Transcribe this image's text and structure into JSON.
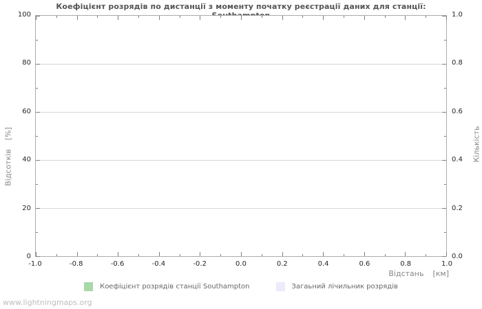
{
  "page": {
    "watermark": "www.lightningmaps.org"
  },
  "colors": {
    "background": "#ffffff",
    "title_text": "#545454",
    "tick_label_text": "#262626",
    "axis_label_text": "#878787",
    "plot_border": "#ababab",
    "gridline": "#d6d6d6",
    "tick_mark": "#7e7e7e",
    "legend_text": "#666666",
    "watermark_text": "#bdbdbd"
  },
  "chart_data": {
    "type": "line",
    "title": "Коефіцієнт розрядів по дистанції з моменту початку реєстрації даних для станції: Southampton",
    "plot_empty": true,
    "grid": {
      "horizontal_major": true,
      "vertical": false
    },
    "legend_position": "bottom-center",
    "x_axis": {
      "label": "Відстань",
      "unit": "[км]",
      "lim": [
        -1.0,
        1.0
      ],
      "ticks": [
        "-1.0",
        "-0.8",
        "-0.6",
        "-0.4",
        "-0.2",
        "0.0",
        "0.2",
        "0.4",
        "0.6",
        "0.8",
        "1.0"
      ],
      "minor_ticks_per_interval": 1
    },
    "y_axis_left": {
      "label": "Відсотків",
      "unit": "[%]",
      "lim": [
        0,
        100
      ],
      "ticks": [
        "100",
        "80",
        "60",
        "40",
        "20",
        "0"
      ],
      "minor_ticks_per_interval": 1
    },
    "y_axis_right": {
      "label": "Кількість",
      "lim": [
        0.0,
        1.0
      ],
      "ticks": [
        "1.0",
        "0.8",
        "0.6",
        "0.4",
        "0.2",
        "0.0"
      ],
      "minor_ticks_per_interval": 1
    },
    "series": [
      {
        "name": "Коефіцієнт розрядів станції Southampton",
        "color": "#a9d8a9",
        "points": []
      },
      {
        "name": "Загаьний лічильник розрядів",
        "color": "#ecebfa",
        "points": []
      }
    ]
  }
}
